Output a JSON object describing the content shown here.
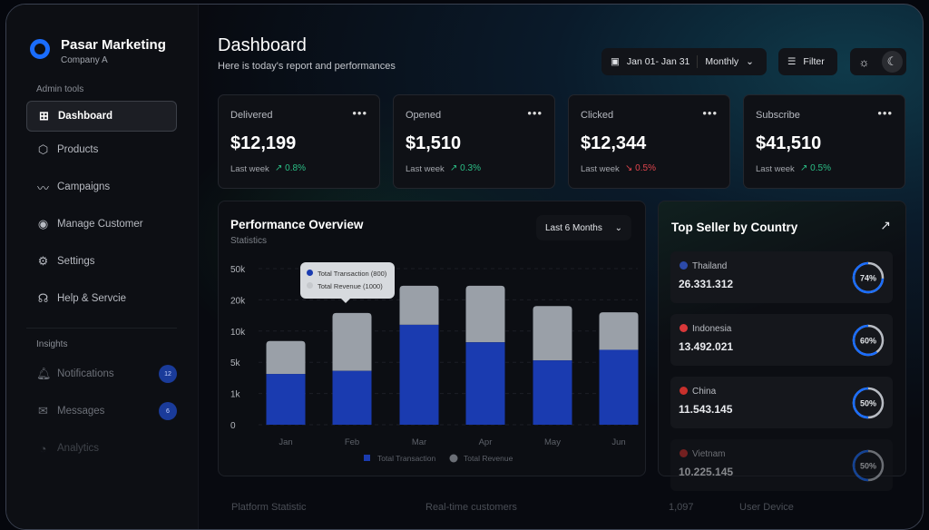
{
  "sidebar": {
    "brand": "Pasar Marketing",
    "company": "Company A",
    "sections": {
      "admin": "Admin tools",
      "insights": "Insights"
    },
    "items": [
      {
        "label": "Dashboard",
        "icon": "grid-icon"
      },
      {
        "label": "Products",
        "icon": "box-icon"
      },
      {
        "label": "Campaigns",
        "icon": "trend-icon"
      },
      {
        "label": "Manage Customer",
        "icon": "user-circle-icon"
      },
      {
        "label": "Settings",
        "icon": "gear-icon"
      },
      {
        "label": "Help & Servcie",
        "icon": "headset-icon"
      }
    ],
    "insights": [
      {
        "label": "Notifications",
        "icon": "bell-icon",
        "badge": "12"
      },
      {
        "label": "Messages",
        "icon": "mail-icon",
        "badge": "6"
      },
      {
        "label": "Analytics",
        "icon": "pie-icon"
      }
    ]
  },
  "header": {
    "title": "Dashboard",
    "subtitle": "Here is today's report and performances",
    "date_range": "Jan 01- Jan 31",
    "period": "Monthly",
    "filter": "Filter"
  },
  "cards": [
    {
      "label": "Delivered",
      "value": "$12,199",
      "period": "Last week",
      "change": "0.8%",
      "trend": "up"
    },
    {
      "label": "Opened",
      "value": "$1,510",
      "period": "Last week",
      "change": "0.3%",
      "trend": "up"
    },
    {
      "label": "Clicked",
      "value": "$12,344",
      "period": "Last week",
      "change": "0.5%",
      "trend": "down"
    },
    {
      "label": "Subscribe",
      "value": "$41,510",
      "period": "Last week",
      "change": "0.5%",
      "trend": "up"
    }
  ],
  "performance": {
    "title": "Performance Overview",
    "subtitle": "Statistics",
    "range": "Last 6 Months",
    "tooltip": {
      "transaction": "Total Transaction (800)",
      "revenue": "Total Revenue (1000)"
    }
  },
  "chart_data": {
    "type": "bar",
    "stacked": true,
    "categories": [
      "Jan",
      "Feb",
      "Mar",
      "Apr",
      "May",
      "Jun"
    ],
    "yticks": [
      0,
      1000,
      5000,
      10000,
      20000,
      50000
    ],
    "ytick_labels": [
      "0",
      "1k",
      "5k",
      "10k",
      "20k",
      "50k"
    ],
    "grid": true,
    "legend": "bottom",
    "series": [
      {
        "name": "Total Transaction",
        "color": "#1a3bb0",
        "values": [
          3500,
          3900,
          12000,
          8200,
          5300,
          7000
        ]
      },
      {
        "name": "Total Revenue",
        "color": "#9aa0a8",
        "values": [
          4900,
          11900,
          21500,
          25300,
          12700,
          9000
        ]
      }
    ]
  },
  "top_seller": {
    "title": "Top Seller by Country",
    "countries": [
      {
        "name": "Thailand",
        "value": "26.331.312",
        "percent": 74,
        "label": "74%",
        "flag": "#2c4aa8"
      },
      {
        "name": "Indonesia",
        "value": "13.492.021",
        "percent": 60,
        "label": "60%",
        "flag": "#d9383a"
      },
      {
        "name": "China",
        "value": "11.543.145",
        "percent": 50,
        "label": "50%",
        "flag": "#c8302c"
      },
      {
        "name": "Vietnam",
        "value": "10.225.145",
        "percent": 50,
        "label": "50%",
        "flag": "#c8302c"
      }
    ]
  },
  "bottom": {
    "platform": "Platform Statistic",
    "realtime": "Real-time customers",
    "realtime_value": "1,097",
    "device": "User Device"
  }
}
